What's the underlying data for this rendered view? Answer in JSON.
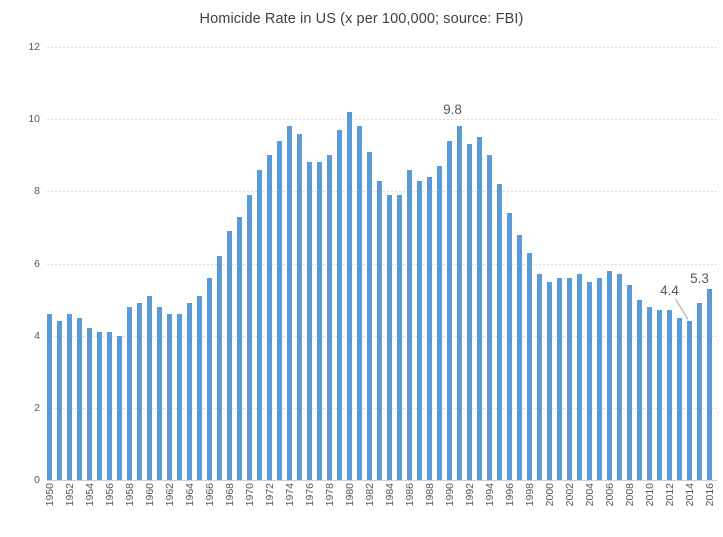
{
  "chart_data": {
    "type": "bar",
    "title": "Homicide Rate in US (x per 100,000; source: FBI)",
    "xlabel": "",
    "ylabel": "",
    "years": [
      1950,
      1951,
      1952,
      1953,
      1954,
      1955,
      1956,
      1957,
      1958,
      1959,
      1960,
      1961,
      1962,
      1963,
      1964,
      1965,
      1966,
      1967,
      1968,
      1969,
      1970,
      1971,
      1972,
      1973,
      1974,
      1975,
      1976,
      1977,
      1978,
      1979,
      1980,
      1981,
      1982,
      1983,
      1984,
      1985,
      1986,
      1987,
      1988,
      1989,
      1990,
      1991,
      1992,
      1993,
      1994,
      1995,
      1996,
      1997,
      1998,
      1999,
      2000,
      2001,
      2002,
      2003,
      2004,
      2005,
      2006,
      2007,
      2008,
      2009,
      2010,
      2011,
      2012,
      2013,
      2014,
      2015,
      2016
    ],
    "values": [
      4.6,
      4.4,
      4.6,
      4.5,
      4.2,
      4.1,
      4.1,
      4.0,
      4.8,
      4.9,
      5.1,
      4.8,
      4.6,
      4.6,
      4.9,
      5.1,
      5.6,
      6.2,
      6.9,
      7.3,
      7.9,
      8.6,
      9.0,
      9.4,
      9.8,
      9.6,
      8.8,
      8.8,
      9.0,
      9.7,
      10.2,
      9.8,
      9.1,
      8.3,
      7.9,
      7.9,
      8.6,
      8.3,
      8.4,
      8.7,
      9.4,
      9.8,
      9.3,
      9.5,
      9.0,
      8.2,
      7.4,
      6.8,
      6.3,
      5.7,
      5.5,
      5.6,
      5.6,
      5.7,
      5.5,
      5.6,
      5.8,
      5.7,
      5.4,
      5.0,
      4.8,
      4.7,
      4.7,
      4.5,
      4.4,
      4.9,
      5.3
    ],
    "ylim": [
      0,
      12
    ],
    "yticks": [
      0,
      2,
      4,
      6,
      8,
      10,
      12
    ],
    "xtick_labels": [
      "1950",
      "1952",
      "1954",
      "1956",
      "1958",
      "1960",
      "1962",
      "1964",
      "1966",
      "1968",
      "1970",
      "1972",
      "1974",
      "1976",
      "1978",
      "1980",
      "1982",
      "1984",
      "1986",
      "1988",
      "1990",
      "1992",
      "1994",
      "1996",
      "1998",
      "2000",
      "2002",
      "2004",
      "2006",
      "2008",
      "2010",
      "2012",
      "2014",
      "2016"
    ],
    "grid": true,
    "legend": null,
    "annotations": [
      {
        "year": 1991,
        "value": 9.8,
        "text": "9.8",
        "leader_line": false
      },
      {
        "year": 2014,
        "value": 4.4,
        "text": "4.4",
        "leader_line": true
      },
      {
        "year": 2016,
        "value": 5.3,
        "text": "5.3",
        "leader_line": false
      }
    ],
    "colors": {
      "bar": "#5B9BD5",
      "grid": "#D9D9D9",
      "axis_line": "#D0D0D0",
      "tick_label": "#595959",
      "title": "#404040",
      "annotation": "#595959",
      "leader_line": "#A6A6A6",
      "background": "#FFFFFF"
    }
  }
}
